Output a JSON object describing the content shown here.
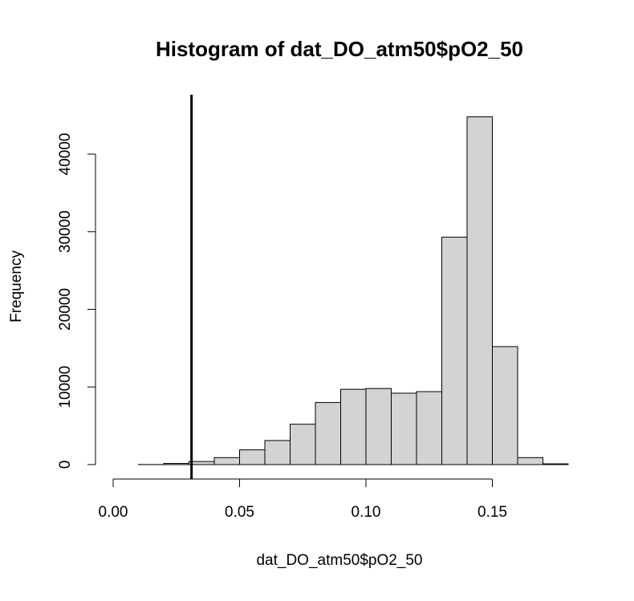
{
  "chart_data": {
    "type": "bar",
    "title": "Histogram of dat_DO_atm50$pO2_50",
    "xlabel": "dat_DO_atm50$pO2_50",
    "ylabel": "Frequency",
    "xlim": [
      0.0,
      0.18
    ],
    "ylim": [
      0,
      46000
    ],
    "bin_edges": [
      0.0,
      0.01,
      0.02,
      0.03,
      0.04,
      0.05,
      0.06,
      0.07,
      0.08,
      0.09,
      0.1,
      0.11,
      0.12,
      0.13,
      0.14,
      0.15,
      0.16,
      0.17,
      0.18
    ],
    "values": [
      0,
      10,
      150,
      400,
      900,
      1900,
      3100,
      5200,
      8000,
      9700,
      9800,
      9200,
      9400,
      29300,
      44800,
      15200,
      900,
      100
    ],
    "x_ticks": [
      0.0,
      0.05,
      0.1,
      0.15
    ],
    "x_tick_labels": [
      "0.00",
      "0.05",
      "0.10",
      "0.15"
    ],
    "y_ticks": [
      0,
      10000,
      20000,
      30000,
      40000
    ],
    "y_tick_labels": [
      "0",
      "10000",
      "20000",
      "30000",
      "40000"
    ],
    "vline": 0.031,
    "bar_fill": "#d3d3d3",
    "bar_stroke": "#000000",
    "grid": false
  }
}
